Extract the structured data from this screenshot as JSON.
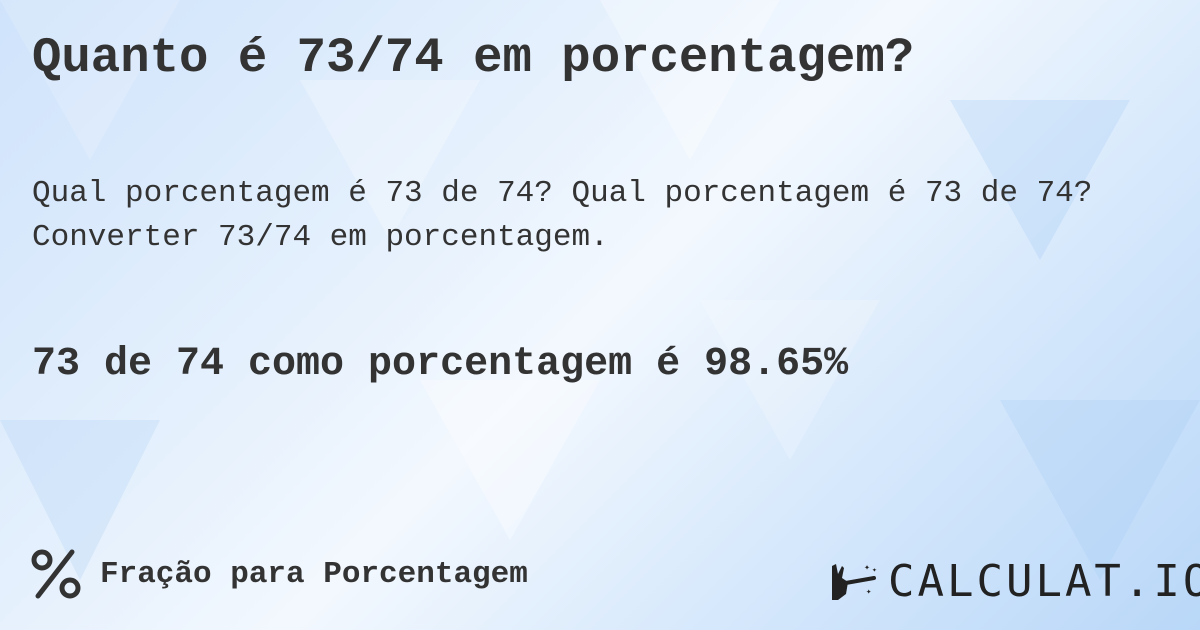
{
  "title": "Quanto é 73/74 em porcentagem?",
  "description": "Qual porcentagem é 73 de 74? Qual porcentagem é 73 de 74? Converter 73/74 em porcentagem.",
  "result": "73 de 74 como porcentagem é 98.65%",
  "footer": {
    "icon": "percent-icon",
    "label": "Fração para Porcentagem"
  },
  "logo": {
    "text": "CALCULAT.IO",
    "icon": "magic-hand-icon"
  },
  "colors": {
    "text": "#333333",
    "background": "#dcebfc"
  }
}
